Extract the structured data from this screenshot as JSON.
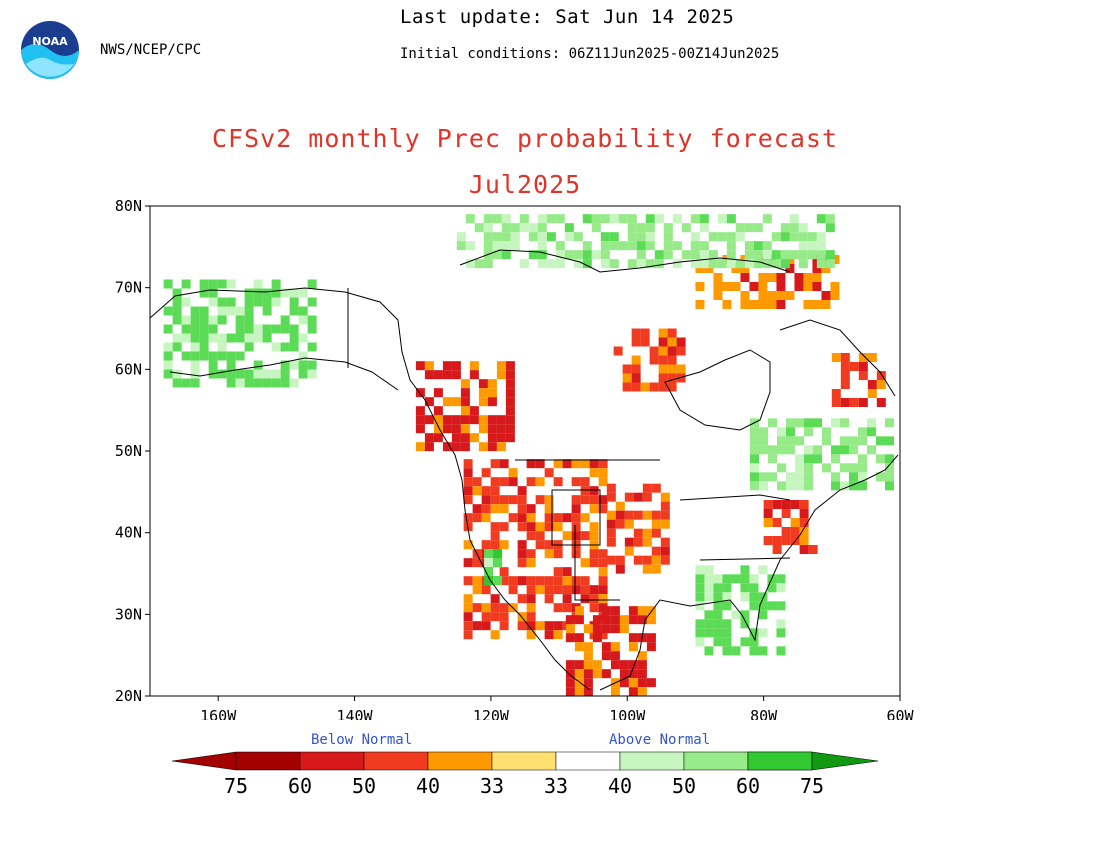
{
  "header": {
    "org": "NWS/NCEP/CPC",
    "last_update": "Last update: Sat Jun 14 2025",
    "initial_conditions": "Initial conditions: 06Z11Jun2025-00Z14Jun2025"
  },
  "title": {
    "line1": "CFSv2 monthly Prec probability forecast",
    "line2": "Jul2025"
  },
  "map": {
    "lat_range": [
      20,
      80
    ],
    "lon_range": [
      -170,
      -60
    ],
    "lat_labels": [
      "80N",
      "70N",
      "60N",
      "50N",
      "40N",
      "30N",
      "20N"
    ],
    "lon_labels": [
      "160W",
      "140W",
      "120W",
      "100W",
      "80W",
      "60W"
    ]
  },
  "legend": {
    "below_label": "Below Normal",
    "above_label": "Above Normal",
    "tick_labels": [
      "75",
      "60",
      "50",
      "40",
      "33",
      "33",
      "40",
      "50",
      "60",
      "75"
    ],
    "colors": {
      "below_75": "#a50000",
      "below_60": "#d7191c",
      "below_50": "#f03b20",
      "below_40": "#ff9900",
      "below_33": "#ffdf70",
      "neutral": "#ffffff",
      "above_33": "#c7f5c0",
      "above_40": "#96ea88",
      "above_50": "#5cdc56",
      "above_60": "#32c832",
      "above_75": "#119911"
    }
  },
  "map_data": {
    "below_regions": [
      {
        "name": "northwest-canada",
        "lon": [
          -131,
          -117
        ],
        "lat": [
          50,
          61
        ],
        "level": "60"
      },
      {
        "name": "us-west",
        "lon": [
          -124,
          -104
        ],
        "lat": [
          27,
          49
        ],
        "level": "50"
      },
      {
        "name": "central-plains",
        "lon": [
          -103,
          -94
        ],
        "lat": [
          36,
          46
        ],
        "level": "50"
      },
      {
        "name": "mexico",
        "lon": [
          -109,
          -97
        ],
        "lat": [
          20,
          31
        ],
        "level": "60"
      },
      {
        "name": "hudson-west",
        "lon": [
          -102,
          -92
        ],
        "lat": [
          58,
          65
        ],
        "level": "50"
      },
      {
        "name": "labrador",
        "lon": [
          -70,
          -63
        ],
        "lat": [
          56,
          62
        ],
        "level": "50"
      },
      {
        "name": "baffin",
        "lon": [
          -90,
          -70
        ],
        "lat": [
          68,
          74
        ],
        "level": "40"
      },
      {
        "name": "mid-atlantic",
        "lon": [
          -80,
          -73
        ],
        "lat": [
          38,
          44
        ],
        "level": "50"
      }
    ],
    "above_regions": [
      {
        "name": "alaska",
        "lon": [
          -168,
          -146
        ],
        "lat": [
          58,
          71
        ],
        "level": "50"
      },
      {
        "name": "arctic-islands",
        "lon": [
          -125,
          -70
        ],
        "lat": [
          73,
          79
        ],
        "level": "40"
      },
      {
        "name": "southeast-us",
        "lon": [
          -90,
          -78
        ],
        "lat": [
          26,
          36
        ],
        "level": "50"
      },
      {
        "name": "quebec",
        "lon": [
          -82,
          -62
        ],
        "lat": [
          46,
          54
        ],
        "level": "40"
      },
      {
        "name": "california-central",
        "lon": [
          -121,
          -119
        ],
        "lat": [
          34,
          38
        ],
        "level": "60"
      }
    ]
  }
}
